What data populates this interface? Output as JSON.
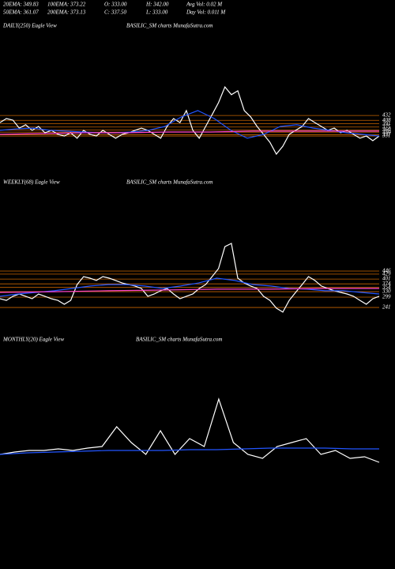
{
  "header": {
    "stats": [
      "20EMA: 349.83",
      "100EMA: 373.22",
      "O: 333.00",
      "H: 342.00",
      "Avg Vol: 0.02  M",
      "50EMA: 361.07",
      "200EMA: 373.13",
      "C: 337.50",
      "L: 333.00",
      "Day Vol: 0.011 M"
    ]
  },
  "chart_data": [
    {
      "type": "line",
      "title": "DAILY(250) Eagle  View",
      "subtitle": "BASILIC_SM charts MunafaSutra.com",
      "ylim": [
        145,
        844
      ],
      "yticks": [
        432,
        408,
        391,
        375,
        360,
        350,
        337,
        331
      ],
      "grid": true,
      "grid_color": "#c86400",
      "series": [
        {
          "color": "#ffffff",
          "values": [
            397,
            417,
            409,
            370,
            386,
            359,
            378,
            347,
            359,
            339,
            331,
            347,
            320,
            359,
            339,
            331,
            359,
            339,
            320,
            339,
            347,
            359,
            370,
            359,
            339,
            320,
            378,
            417,
            397,
            456,
            359,
            320,
            378,
            436,
            495,
            572,
            534,
            553,
            456,
            425,
            378,
            339,
            300,
            242,
            281,
            339,
            359,
            378,
            417,
            397,
            378,
            359,
            370,
            347,
            359,
            339,
            320,
            331,
            308,
            331
          ]
        },
        {
          "color": "#2255ff",
          "values": [
            359,
            366,
            370,
            359,
            355,
            351,
            347,
            347,
            351,
            359,
            378,
            425,
            456,
            417,
            359,
            320,
            339,
            378,
            386,
            370,
            359,
            347,
            339,
            331
          ]
        },
        {
          "color": "#ff44cc",
          "values": [
            339,
            343,
            347,
            347,
            351,
            351,
            355,
            355,
            355,
            355
          ]
        }
      ]
    },
    {
      "type": "line",
      "title": "WEEKLY(68) Eagle  View",
      "subtitle": "BASILIC_SM charts MunafaSutra.com",
      "ylim": [
        14,
        905
      ],
      "yticks": [
        446,
        429,
        401,
        374,
        354,
        330,
        299,
        241
      ],
      "grid": true,
      "grid_color": "#c86400",
      "series": [
        {
          "color": "#ffffff",
          "values": [
            290,
            281,
            304,
            317,
            304,
            290,
            317,
            304,
            290,
            281,
            259,
            281,
            370,
            415,
            406,
            393,
            415,
            406,
            393,
            379,
            370,
            362,
            348,
            304,
            317,
            335,
            348,
            317,
            290,
            304,
            317,
            348,
            370,
            415,
            460,
            584,
            602,
            406,
            379,
            362,
            348,
            304,
            281,
            237,
            215,
            281,
            326,
            370,
            415,
            393,
            362,
            348,
            335,
            326,
            317,
            304,
            281,
            259,
            290,
            304
          ]
        },
        {
          "color": "#2255ff",
          "values": [
            304,
            317,
            326,
            335,
            348,
            362,
            370,
            370,
            362,
            348,
            362,
            379,
            406,
            393,
            370,
            362,
            348,
            344,
            335,
            335,
            326,
            317
          ]
        },
        {
          "color": "#ff44cc",
          "values": [
            326,
            330,
            335,
            339,
            344,
            344,
            348,
            348
          ]
        }
      ]
    },
    {
      "type": "line",
      "title": "MONTHLY(20) Eagle  View",
      "subtitle": "BASILIC_SM charts MunafaSutra.com",
      "ylim": [
        -100,
        800
      ],
      "yticks": [],
      "grid": false,
      "grid_color": "#c86400",
      "series": [
        {
          "color": "#ffffff",
          "values": [
            192.5,
            206,
            215,
            215,
            224,
            215,
            228.5,
            237.5,
            350,
            260,
            192.5,
            327.5,
            192.5,
            282.5,
            237.5,
            507.5,
            260,
            192.5,
            170,
            237.5,
            260,
            282.5,
            192.5,
            215,
            170,
            179,
            147.5
          ]
        },
        {
          "color": "#2255ff",
          "values": [
            192.5,
            201.5,
            206,
            210.5,
            215,
            215,
            215,
            219.5,
            219.5,
            224,
            228.5,
            228.5,
            228.5,
            224,
            224
          ]
        }
      ]
    }
  ]
}
